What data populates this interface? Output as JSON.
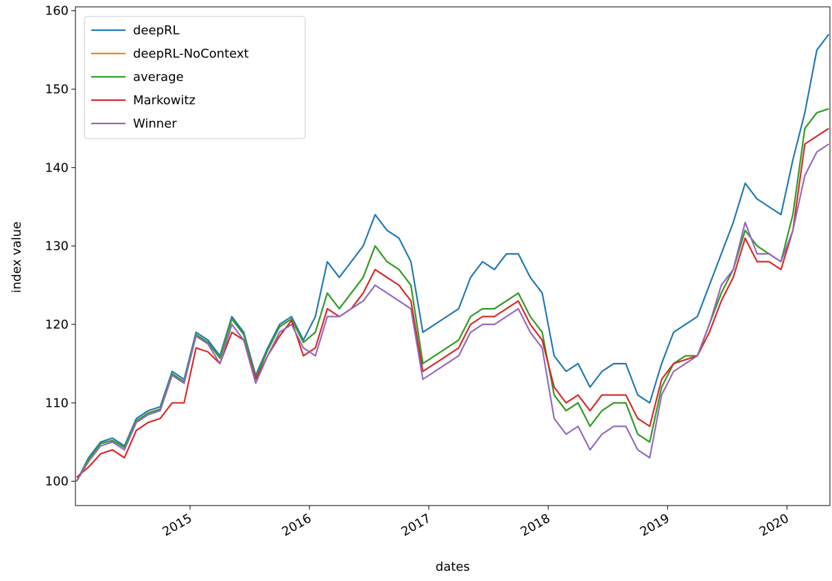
{
  "chart_data": {
    "type": "line",
    "x_label": "dates",
    "y_label": "index value",
    "x": [
      2014.05,
      2014.15,
      2014.25,
      2014.35,
      2014.45,
      2014.55,
      2014.65,
      2014.75,
      2014.85,
      2014.95,
      2015.05,
      2015.15,
      2015.25,
      2015.35,
      2015.45,
      2015.55,
      2015.65,
      2015.75,
      2015.85,
      2015.95,
      2016.05,
      2016.15,
      2016.25,
      2016.35,
      2016.45,
      2016.55,
      2016.65,
      2016.75,
      2016.85,
      2016.95,
      2017.05,
      2017.15,
      2017.25,
      2017.35,
      2017.45,
      2017.55,
      2017.65,
      2017.75,
      2017.85,
      2017.95,
      2018.05,
      2018.15,
      2018.25,
      2018.35,
      2018.45,
      2018.55,
      2018.65,
      2018.75,
      2018.85,
      2018.95,
      2019.05,
      2019.15,
      2019.25,
      2019.35,
      2019.45,
      2019.55,
      2019.65,
      2019.75,
      2019.85,
      2019.95,
      2020.05,
      2020.15,
      2020.25,
      2020.35
    ],
    "xlim": [
      2014.04,
      2020.36
    ],
    "xticks": [
      2015,
      2016,
      2017,
      2018,
      2019,
      2020
    ],
    "ylim": [
      96.9,
      160.5
    ],
    "yticks": [
      100,
      110,
      120,
      130,
      140,
      150,
      160
    ],
    "legend": "upper left",
    "series": [
      {
        "name": "deepRL",
        "color": "#1f77b4",
        "values": [
          100,
          103,
          105,
          105.5,
          104.5,
          108,
          109,
          109.5,
          114,
          113,
          119,
          118,
          116,
          121,
          119,
          113.5,
          117,
          120,
          121,
          118,
          121,
          128,
          126,
          128,
          130,
          134,
          132,
          131,
          128,
          119,
          120,
          121,
          122,
          126,
          128,
          127,
          129,
          129,
          126,
          124,
          116,
          114,
          115,
          112,
          114,
          115,
          115,
          111,
          110,
          115,
          119,
          120,
          121,
          125,
          129,
          133,
          138,
          136,
          135,
          134,
          141,
          147,
          155,
          157
        ]
      },
      {
        "name": "deepRL-NoContext",
        "color": "#ff7f0e",
        "values": [
          100,
          102.8,
          104.8,
          105.2,
          104.3,
          107.7,
          108.7,
          109.2,
          113.7,
          112.7,
          118.7,
          117.7,
          115.7,
          120.7,
          118.7,
          113.2,
          116.7,
          119.7,
          120.7,
          117.7,
          119,
          124,
          122,
          124,
          126,
          130,
          128,
          127,
          125,
          115,
          116,
          117,
          118,
          121,
          122,
          122,
          123,
          124,
          121,
          119,
          111,
          109,
          110,
          107,
          109,
          110,
          110,
          106,
          105,
          112,
          115,
          116,
          116,
          120,
          124,
          127,
          132,
          130,
          129,
          128,
          134,
          145,
          147,
          147.5
        ]
      },
      {
        "name": "average",
        "color": "#2ca02c",
        "values": [
          100,
          102.8,
          104.8,
          105.2,
          104.3,
          107.7,
          108.7,
          109.2,
          113.7,
          112.7,
          118.7,
          117.7,
          115.7,
          120.7,
          118.7,
          113.2,
          116.7,
          119.7,
          120.7,
          117.7,
          119,
          124,
          122,
          124,
          126,
          130,
          128,
          127,
          125,
          115,
          116,
          117,
          118,
          121,
          122,
          122,
          123,
          124,
          121,
          119,
          111,
          109,
          110,
          107,
          109,
          110,
          110,
          106,
          105,
          112,
          115,
          116,
          116,
          120,
          124,
          127,
          132,
          130,
          129,
          128,
          134,
          145,
          147,
          147.5
        ]
      },
      {
        "name": "Markowitz",
        "color": "#d62728",
        "values": [
          100.5,
          101.8,
          103.5,
          104,
          103,
          106.5,
          107.5,
          108,
          110,
          110,
          117,
          116.5,
          115,
          119,
          118,
          113,
          116,
          118.5,
          120.5,
          116,
          117,
          122,
          121,
          122,
          124,
          127,
          126,
          125,
          123,
          114,
          115,
          116,
          117,
          120,
          121,
          121,
          122,
          123,
          120,
          118,
          112,
          110,
          111,
          109,
          111,
          111,
          111,
          108,
          107,
          113,
          115,
          115.5,
          116,
          119,
          123,
          126,
          131,
          128,
          128,
          127,
          132,
          143,
          144,
          145
        ]
      },
      {
        "name": "Winner",
        "color": "#9467bd",
        "values": [
          100,
          102.5,
          104.5,
          105,
          104,
          107.5,
          108.5,
          109,
          113.5,
          112.5,
          118.5,
          117.5,
          115,
          120,
          118,
          112.5,
          116,
          119,
          120,
          117,
          116,
          121,
          121,
          122,
          123,
          125,
          124,
          123,
          122,
          113,
          114,
          115,
          116,
          119,
          120,
          120,
          121,
          122,
          119,
          117,
          108,
          106,
          107,
          104,
          106,
          107,
          107,
          104,
          103,
          111,
          114,
          115,
          116,
          120,
          125,
          127,
          133,
          129,
          129,
          128,
          132,
          139,
          142,
          143
        ]
      }
    ]
  }
}
